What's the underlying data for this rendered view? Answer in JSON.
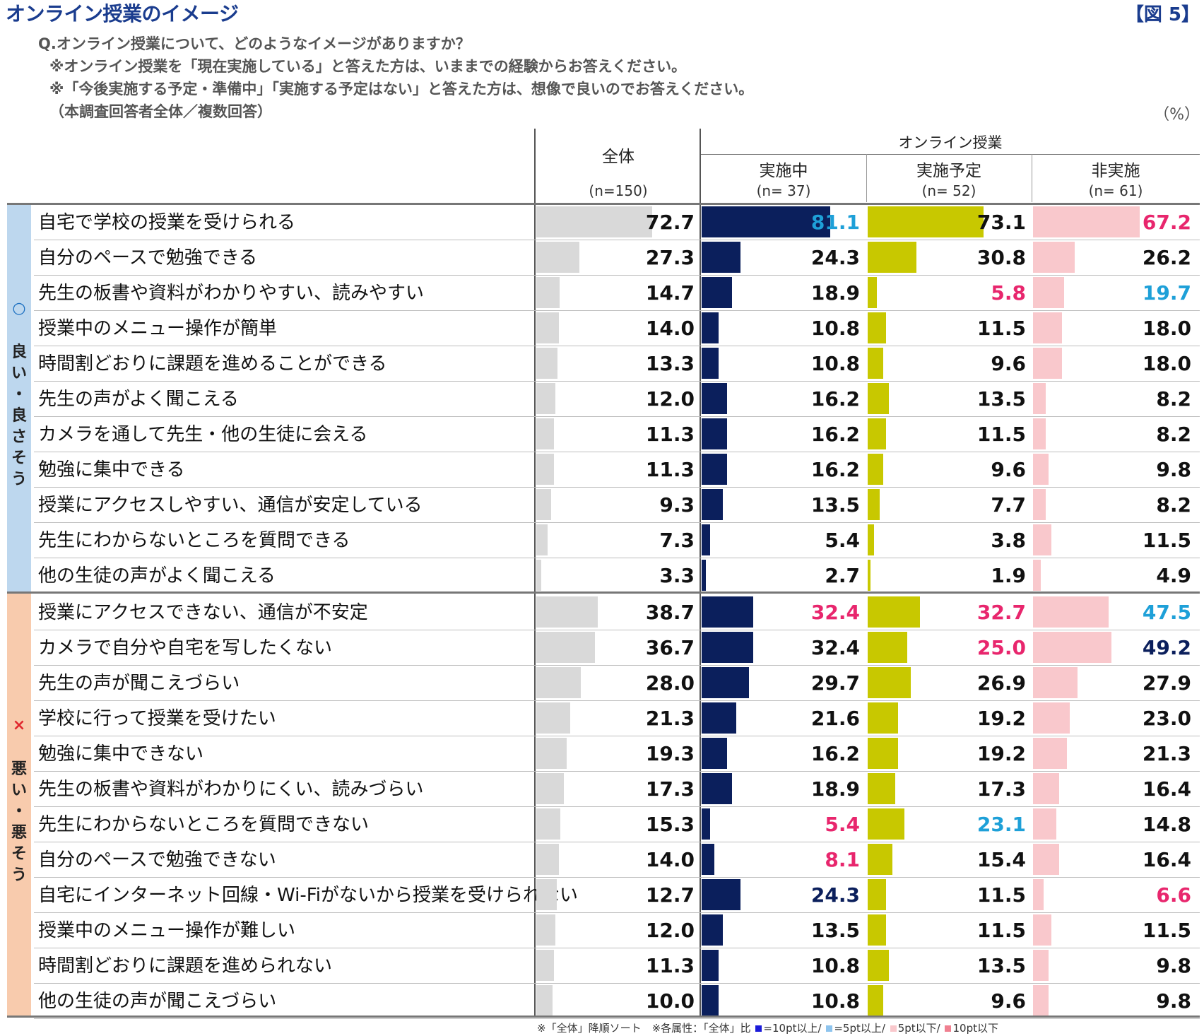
{
  "header": {
    "title": "オンライン授業のイメージ",
    "figure_no": "【図 5】",
    "question": "Q.オンライン授業について、どのようなイメージがありますか？",
    "note1": "※オンライン授業を「現在実施している」と答えた方は、いままでの経験からお答えください。",
    "note2": "※「今後実施する予定・準備中」「実施する予定はない」と答えた方は、想像で良いのでお答えください。",
    "note3": "（本調査回答者全体／複数回答）",
    "unit": "（%）"
  },
  "columns": {
    "group_label": "オンライン授業",
    "total_label": "全体",
    "total_n": "(n=150)",
    "c1_label": "実施中",
    "c1_n": "(n=  37)",
    "c2_label": "実施予定",
    "c2_n": "(n=  52)",
    "c3_label": "非実施",
    "c3_n": "(n=  61)"
  },
  "groups": {
    "good_mark": "○",
    "good_text": "良い・良さそう",
    "bad_mark": "×",
    "bad_text": "悪い・悪そう"
  },
  "footer": {
    "prefix": "※「全体」降順ソート　※各属性：「全体」比",
    "l1": "=10pt以上/",
    "l2": "=5pt以上/",
    "l3": "5pt以下/",
    "l4": "10pt以下"
  },
  "colors": {
    "total_bar": "#d9d9d9",
    "c1_bar": "#0b1f5c",
    "c2_bar": "#c8c800",
    "c3_bar": "#f9c8cc",
    "good_bg": "#bdd7ee",
    "bad_bg": "#f8cbad",
    "val_default": "#111111",
    "val_hi10": "#0b1f5c",
    "val_hi5": "#1ea0d8",
    "val_lo5": "#e8266d",
    "val_lo10": "#e8266d",
    "legend_hi10": "#1b1bd9",
    "legend_hi5": "#8ec4ee",
    "legend_lo5": "#f9c8cc",
    "legend_lo10": "#f08090"
  },
  "chart_data": {
    "type": "bar",
    "series": [
      {
        "name": "全体",
        "key": "total"
      },
      {
        "name": "実施中",
        "key": "c1"
      },
      {
        "name": "実施予定",
        "key": "c2"
      },
      {
        "name": "非実施",
        "key": "c3"
      }
    ],
    "rows": [
      {
        "group": "good",
        "label": "自宅で学校の授業を受けられる",
        "total": "72.7",
        "c1": "81.1",
        "c2": "73.1",
        "c3": "67.2",
        "c1_color": "val_hi5",
        "c2_color": "val_default",
        "c3_color": "val_lo5"
      },
      {
        "group": "good",
        "label": "自分のペースで勉強できる",
        "total": "27.3",
        "c1": "24.3",
        "c2": "30.8",
        "c3": "26.2",
        "c1_color": "val_default",
        "c2_color": "val_default",
        "c3_color": "val_default"
      },
      {
        "group": "good",
        "label": "先生の板書や資料がわかりやすい、読みやすい",
        "total": "14.7",
        "c1": "18.9",
        "c2": "5.8",
        "c3": "19.7",
        "c1_color": "val_default",
        "c2_color": "val_lo5",
        "c3_color": "val_hi5"
      },
      {
        "group": "good",
        "label": "授業中のメニュー操作が簡単",
        "total": "14.0",
        "c1": "10.8",
        "c2": "11.5",
        "c3": "18.0",
        "c1_color": "val_default",
        "c2_color": "val_default",
        "c3_color": "val_default"
      },
      {
        "group": "good",
        "label": "時間割どおりに課題を進めることができる",
        "total": "13.3",
        "c1": "10.8",
        "c2": "9.6",
        "c3": "18.0",
        "c1_color": "val_default",
        "c2_color": "val_default",
        "c3_color": "val_default"
      },
      {
        "group": "good",
        "label": "先生の声がよく聞こえる",
        "total": "12.0",
        "c1": "16.2",
        "c2": "13.5",
        "c3": "8.2",
        "c1_color": "val_default",
        "c2_color": "val_default",
        "c3_color": "val_default"
      },
      {
        "group": "good",
        "label": "カメラを通して先生・他の生徒に会える",
        "total": "11.3",
        "c1": "16.2",
        "c2": "11.5",
        "c3": "8.2",
        "c1_color": "val_default",
        "c2_color": "val_default",
        "c3_color": "val_default"
      },
      {
        "group": "good",
        "label": "勉強に集中できる",
        "total": "11.3",
        "c1": "16.2",
        "c2": "9.6",
        "c3": "9.8",
        "c1_color": "val_default",
        "c2_color": "val_default",
        "c3_color": "val_default"
      },
      {
        "group": "good",
        "label": "授業にアクセスしやすい、通信が安定している",
        "total": "9.3",
        "c1": "13.5",
        "c2": "7.7",
        "c3": "8.2",
        "c1_color": "val_default",
        "c2_color": "val_default",
        "c3_color": "val_default"
      },
      {
        "group": "good",
        "label": "先生にわからないところを質問できる",
        "total": "7.3",
        "c1": "5.4",
        "c2": "3.8",
        "c3": "11.5",
        "c1_color": "val_default",
        "c2_color": "val_default",
        "c3_color": "val_default"
      },
      {
        "group": "good",
        "label": "他の生徒の声がよく聞こえる",
        "total": "3.3",
        "c1": "2.7",
        "c2": "1.9",
        "c3": "4.9",
        "c1_color": "val_default",
        "c2_color": "val_default",
        "c3_color": "val_default"
      },
      {
        "group": "bad",
        "label": "授業にアクセスできない、通信が不安定",
        "total": "38.7",
        "c1": "32.4",
        "c2": "32.7",
        "c3": "47.5",
        "c1_color": "val_lo5",
        "c2_color": "val_lo5",
        "c3_color": "val_hi5"
      },
      {
        "group": "bad",
        "label": "カメラで自分や自宅を写したくない",
        "total": "36.7",
        "c1": "32.4",
        "c2": "25.0",
        "c3": "49.2",
        "c1_color": "val_default",
        "c2_color": "val_lo10",
        "c3_color": "val_hi10"
      },
      {
        "group": "bad",
        "label": "先生の声が聞こえづらい",
        "total": "28.0",
        "c1": "29.7",
        "c2": "26.9",
        "c3": "27.9",
        "c1_color": "val_default",
        "c2_color": "val_default",
        "c3_color": "val_default"
      },
      {
        "group": "bad",
        "label": "学校に行って授業を受けたい",
        "total": "21.3",
        "c1": "21.6",
        "c2": "19.2",
        "c3": "23.0",
        "c1_color": "val_default",
        "c2_color": "val_default",
        "c3_color": "val_default"
      },
      {
        "group": "bad",
        "label": "勉強に集中できない",
        "total": "19.3",
        "c1": "16.2",
        "c2": "19.2",
        "c3": "21.3",
        "c1_color": "val_default",
        "c2_color": "val_default",
        "c3_color": "val_default"
      },
      {
        "group": "bad",
        "label": "先生の板書や資料がわかりにくい、読みづらい",
        "total": "17.3",
        "c1": "18.9",
        "c2": "17.3",
        "c3": "16.4",
        "c1_color": "val_default",
        "c2_color": "val_default",
        "c3_color": "val_default"
      },
      {
        "group": "bad",
        "label": "先生にわからないところを質問できない",
        "total": "15.3",
        "c1": "5.4",
        "c2": "23.1",
        "c3": "14.8",
        "c1_color": "val_lo10",
        "c2_color": "val_hi5",
        "c3_color": "val_default"
      },
      {
        "group": "bad",
        "label": "自分のペースで勉強できない",
        "total": "14.0",
        "c1": "8.1",
        "c2": "15.4",
        "c3": "16.4",
        "c1_color": "val_lo5",
        "c2_color": "val_default",
        "c3_color": "val_default"
      },
      {
        "group": "bad",
        "label": "自宅にインターネット回線・Wi-Fiがないから授業を受けられない",
        "total": "12.7",
        "c1": "24.3",
        "c2": "11.5",
        "c3": "6.6",
        "c1_color": "val_hi10",
        "c2_color": "val_default",
        "c3_color": "val_lo5"
      },
      {
        "group": "bad",
        "label": "授業中のメニュー操作が難しい",
        "total": "12.0",
        "c1": "13.5",
        "c2": "11.5",
        "c3": "11.5",
        "c1_color": "val_default",
        "c2_color": "val_default",
        "c3_color": "val_default"
      },
      {
        "group": "bad",
        "label": "時間割どおりに課題を進められない",
        "total": "11.3",
        "c1": "10.8",
        "c2": "13.5",
        "c3": "9.8",
        "c1_color": "val_default",
        "c2_color": "val_default",
        "c3_color": "val_default"
      },
      {
        "group": "bad",
        "label": "他の生徒の声が聞こえづらい",
        "total": "10.0",
        "c1": "10.8",
        "c2": "9.6",
        "c3": "9.8",
        "c1_color": "val_default",
        "c2_color": "val_default",
        "c3_color": "val_default"
      }
    ]
  }
}
